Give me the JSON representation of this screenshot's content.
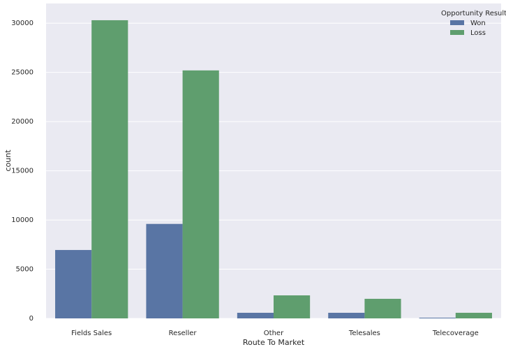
{
  "chart_data": {
    "type": "bar",
    "x_label": "Route To Market",
    "y_label": "count",
    "categories": [
      "Fields Sales",
      "Reseller",
      "Other",
      "Telesales",
      "Telecoverage"
    ],
    "series": [
      {
        "name": "Won",
        "color": "#5975a4",
        "values": [
          6950,
          9600,
          570,
          570,
          70
        ]
      },
      {
        "name": "Loss",
        "color": "#5f9e6e",
        "values": [
          30300,
          25200,
          2340,
          1990,
          570
        ]
      }
    ],
    "legend_title": "Opportunity Result",
    "legend": "upper right",
    "ylim": [
      0,
      32000
    ],
    "yticks": [
      0,
      5000,
      10000,
      15000,
      20000,
      25000,
      30000
    ],
    "grid": true
  }
}
